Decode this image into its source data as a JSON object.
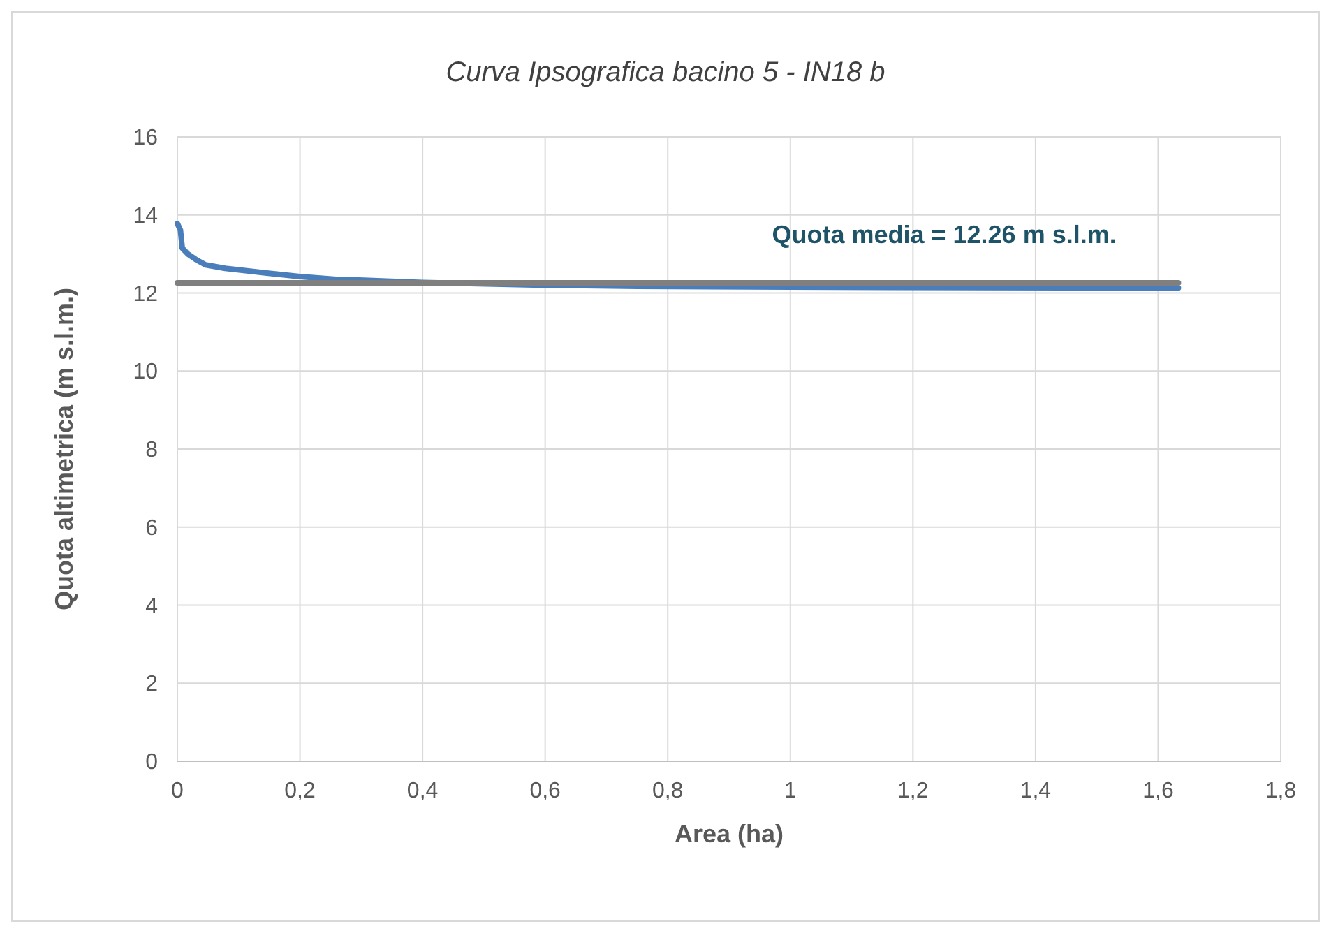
{
  "chart_data": {
    "type": "line",
    "title": "Curva Ipsografica bacino 5 - IN18 b",
    "xlabel": "Area (ha)",
    "ylabel": "Quota altimetrica (m s.l.m.)",
    "xlim": [
      0,
      1.8
    ],
    "ylim": [
      0,
      16
    ],
    "xticks": [
      0,
      {
        "value": 0.2,
        "label": "0,2"
      },
      {
        "value": 0.4,
        "label": "0,4"
      },
      {
        "value": 0.6,
        "label": "0,6"
      },
      {
        "value": 0.8,
        "label": "0,8"
      },
      1,
      {
        "value": 1.2,
        "label": "1,2"
      },
      {
        "value": 1.4,
        "label": "1,4"
      },
      {
        "value": 1.6,
        "label": "1,6"
      },
      {
        "value": 1.8,
        "label": "1,8"
      }
    ],
    "yticks": [
      0,
      2,
      4,
      6,
      8,
      10,
      12,
      14,
      16
    ],
    "grid": true,
    "marker": "none",
    "line_style": "solid",
    "series": [
      {
        "color": "#4a7ebb",
        "x": [
          0,
          0.005,
          0.008,
          0.017,
          0.032,
          0.046,
          0.078,
          0.146,
          0.2,
          0.259,
          0.334,
          0.4,
          0.6,
          0.75,
          1.0,
          1.3,
          1.633
        ],
        "values": [
          13.78,
          13.61,
          13.15,
          13.0,
          12.84,
          12.72,
          12.63,
          12.51,
          12.42,
          12.35,
          12.31,
          12.27,
          12.2,
          12.17,
          12.15,
          12.14,
          12.13
        ]
      },
      {
        "color": "#7f7f7f",
        "x": [
          0,
          1.633
        ],
        "values": [
          12.26,
          12.26
        ]
      }
    ],
    "annotations": [
      "Quota media = 12.26 m s.l.m."
    ]
  }
}
